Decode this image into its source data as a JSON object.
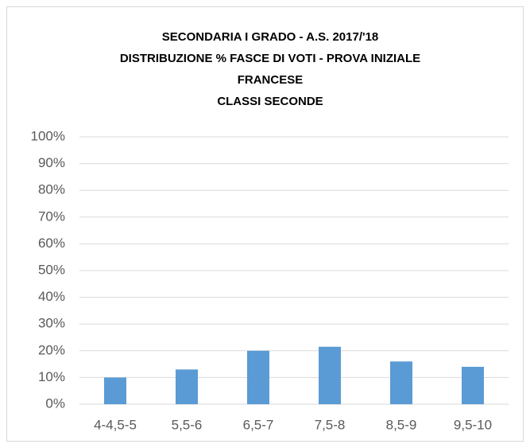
{
  "chart_data": {
    "type": "bar",
    "title": [
      "SECONDARIA I GRADO - A.S. 2017/'18",
      "DISTRIBUZIONE % FASCE DI VOTI - PROVA INIZIALE",
      "FRANCESE",
      "CLASSI SECONDE"
    ],
    "categories": [
      "4-4,5-5",
      "5,5-6",
      "6,5-7",
      "7,5-8",
      "8,5-9",
      "9,5-10"
    ],
    "values": [
      10,
      13,
      20,
      21.5,
      16,
      14
    ],
    "color": "#5b9bd5",
    "ylim": [
      0,
      100
    ],
    "yticks": [
      {
        "value": 0,
        "label": "0%"
      },
      {
        "value": 10,
        "label": "10%"
      },
      {
        "value": 20,
        "label": "20%"
      },
      {
        "value": 30,
        "label": "30%"
      },
      {
        "value": 40,
        "label": "40%"
      },
      {
        "value": 50,
        "label": "50%"
      },
      {
        "value": 60,
        "label": "60%"
      },
      {
        "value": 70,
        "label": "70%"
      },
      {
        "value": 80,
        "label": "80%"
      },
      {
        "value": 90,
        "label": "90%"
      },
      {
        "value": 100,
        "label": "100%"
      }
    ],
    "grid": true
  }
}
